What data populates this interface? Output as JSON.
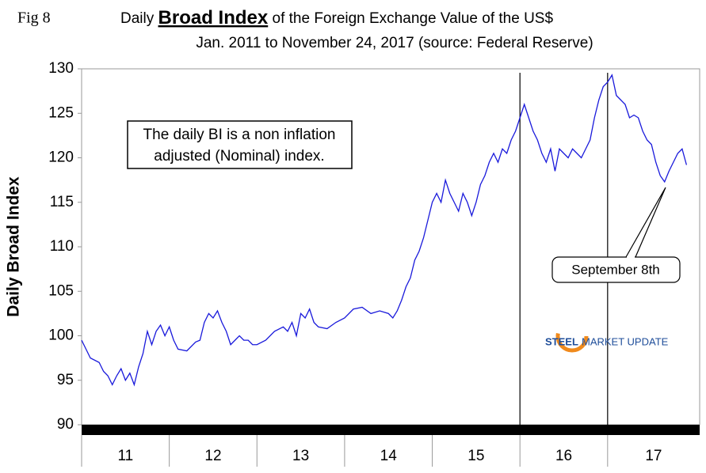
{
  "chart_data": {
    "type": "line",
    "fig_label": "Fig 8",
    "title_parts": [
      "Daily ",
      "Broad Index",
      " of the Foreign Exchange Value of the US$"
    ],
    "subtitle": "Jan. 2011 to November 24, 2017 (source: Federal Reserve)",
    "y_label": "Daily Broad Index",
    "annotation_lines": [
      "The daily BI is a non inflation",
      "adjusted (Nominal) index."
    ],
    "callout": "September 8th",
    "logo": [
      "STEEL",
      "MARKET UPDATE"
    ],
    "xlim": [
      2011,
      2018.05
    ],
    "ylim": [
      90,
      130
    ],
    "yticks": [
      90,
      95,
      100,
      105,
      110,
      115,
      120,
      125,
      130
    ],
    "xticks": [
      {
        "value": 2011,
        "label": "11"
      },
      {
        "value": 2012,
        "label": "12"
      },
      {
        "value": 2013,
        "label": "13"
      },
      {
        "value": 2014,
        "label": "14"
      },
      {
        "value": 2015,
        "label": "15"
      },
      {
        "value": 2016,
        "label": "16"
      },
      {
        "value": 2017,
        "label": "17"
      }
    ],
    "vlines": [
      2016,
      2017
    ],
    "series": [
      {
        "name": "Daily Broad Index",
        "color": "#1a1adb",
        "x": [
          2011.0,
          2011.05,
          2011.1,
          2011.2,
          2011.25,
          2011.3,
          2011.35,
          2011.4,
          2011.45,
          2011.5,
          2011.55,
          2011.6,
          2011.65,
          2011.7,
          2011.75,
          2011.8,
          2011.85,
          2011.9,
          2011.95,
          2012.0,
          2012.05,
          2012.1,
          2012.2,
          2012.3,
          2012.35,
          2012.4,
          2012.45,
          2012.5,
          2012.55,
          2012.6,
          2012.65,
          2012.7,
          2012.75,
          2012.8,
          2012.85,
          2012.9,
          2012.95,
          2013.0,
          2013.1,
          2013.2,
          2013.3,
          2013.35,
          2013.4,
          2013.45,
          2013.5,
          2013.55,
          2013.6,
          2013.65,
          2013.7,
          2013.8,
          2013.9,
          2014.0,
          2014.1,
          2014.2,
          2014.3,
          2014.4,
          2014.5,
          2014.55,
          2014.6,
          2014.65,
          2014.7,
          2014.75,
          2014.8,
          2014.85,
          2014.9,
          2014.95,
          2015.0,
          2015.05,
          2015.1,
          2015.15,
          2015.2,
          2015.25,
          2015.3,
          2015.35,
          2015.4,
          2015.45,
          2015.5,
          2015.55,
          2015.6,
          2015.65,
          2015.7,
          2015.75,
          2015.8,
          2015.85,
          2015.9,
          2015.95,
          2016.0,
          2016.05,
          2016.1,
          2016.15,
          2016.2,
          2016.25,
          2016.3,
          2016.35,
          2016.4,
          2016.45,
          2016.5,
          2016.55,
          2016.6,
          2016.65,
          2016.7,
          2016.75,
          2016.8,
          2016.85,
          2016.9,
          2016.95,
          2017.0,
          2017.05,
          2017.1,
          2017.15,
          2017.2,
          2017.25,
          2017.3,
          2017.35,
          2017.4,
          2017.45,
          2017.5,
          2017.55,
          2017.6,
          2017.65,
          2017.7,
          2017.75,
          2017.8,
          2017.85,
          2017.9
        ],
        "values": [
          99.5,
          98.5,
          97.5,
          97,
          96,
          95.5,
          94.5,
          95.5,
          96.3,
          95,
          95.8,
          94.5,
          96.5,
          98,
          100.5,
          99,
          100.5,
          101.2,
          100,
          101,
          99.5,
          98.5,
          98.3,
          99.3,
          99.5,
          101.5,
          102.5,
          102,
          102.8,
          101.5,
          100.5,
          99,
          99.5,
          100,
          99.5,
          99.5,
          99,
          99,
          99.5,
          100.5,
          101,
          100.5,
          101.5,
          100,
          102.5,
          102,
          103,
          101.5,
          101,
          100.8,
          101.5,
          102,
          103,
          103.2,
          102.5,
          102.8,
          102.5,
          102,
          102.8,
          104,
          105.5,
          106.5,
          108.5,
          109.5,
          111,
          113,
          115,
          116,
          115,
          117.5,
          116,
          115,
          114,
          116,
          115,
          113.5,
          115,
          117,
          118,
          119.5,
          120.5,
          119.5,
          121,
          120.5,
          122,
          123,
          124.5,
          126,
          124.5,
          123,
          122,
          120.5,
          119.5,
          121,
          118.5,
          121,
          120.5,
          120,
          121,
          120.5,
          120,
          121,
          122,
          124.5,
          126.5,
          128,
          128.5,
          129.3,
          127,
          126.5,
          126,
          124.5,
          124.8,
          124.5,
          123,
          122,
          121.5,
          119.5,
          118,
          117.3,
          118.5,
          119.5,
          120.5,
          121,
          119.2
        ]
      }
    ]
  }
}
